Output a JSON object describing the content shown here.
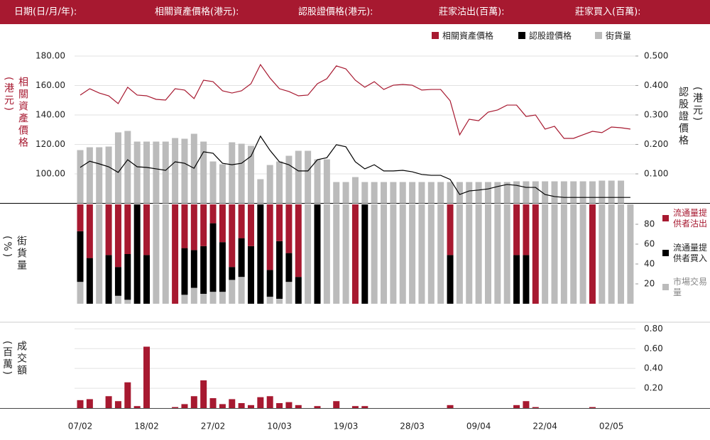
{
  "header": {
    "labels": [
      "日期(日/月/年):",
      "相關資產價格(港元):",
      "認股證價格(港元):",
      "莊家沽出(百萬):",
      "莊家買入(百萬):"
    ]
  },
  "chart_data": [
    {
      "type": "line",
      "ylabel": "相關資產價格(港元)",
      "y2label": "認股證價格(港元)",
      "ylim": [
        80,
        186
      ],
      "yticks": [
        {
          "value": 180,
          "label": "180.00"
        },
        {
          "value": 160,
          "label": "160.00"
        },
        {
          "value": 140,
          "label": "140.00"
        },
        {
          "value": 120,
          "label": "120.00"
        },
        {
          "value": 100,
          "label": "100.00"
        }
      ],
      "y2lim": [
        0,
        0.53
      ],
      "y2ticks": [
        {
          "value": 0.5,
          "label": "0.500"
        },
        {
          "value": 0.4,
          "label": "0.400"
        },
        {
          "value": 0.3,
          "label": "0.300"
        },
        {
          "value": 0.2,
          "label": "0.200"
        },
        {
          "value": 0.1,
          "label": "0.100"
        }
      ],
      "y3lim": [
        0,
        220
      ],
      "grid": true,
      "series": [
        {
          "name": "相關資產價格",
          "color": "#a71930",
          "axis": "y",
          "values": [
            153.5,
            157.8,
            154.9,
            153.0,
            147.7,
            158.8,
            153.5,
            153.0,
            150.6,
            150.1,
            157.8,
            156.9,
            151.1,
            163.6,
            162.6,
            156.4,
            154.9,
            156.4,
            161.2,
            174.2,
            165.1,
            157.8,
            155.9,
            153.0,
            153.5,
            161.2,
            164.6,
            173.3,
            171.3,
            163.6,
            158.8,
            162.6,
            157.3,
            160.2,
            160.7,
            160.2,
            156.9,
            157.3,
            157.3,
            149.6,
            126.5,
            137.1,
            136.1,
            141.9,
            143.4,
            146.7,
            146.7,
            139.0,
            140.0,
            130.4,
            132.3,
            124.1,
            124.1,
            126.5,
            128.9,
            128.0,
            131.8,
            131.3,
            130.4
          ]
        },
        {
          "name": "認股證價格",
          "color": "#000000",
          "axis": "y2",
          "values": [
            0.122,
            0.143,
            0.134,
            0.124,
            0.105,
            0.148,
            0.124,
            0.122,
            0.117,
            0.112,
            0.141,
            0.136,
            0.119,
            0.175,
            0.17,
            0.136,
            0.131,
            0.136,
            0.16,
            0.228,
            0.18,
            0.141,
            0.131,
            0.11,
            0.11,
            0.148,
            0.155,
            0.199,
            0.192,
            0.141,
            0.117,
            0.131,
            0.11,
            0.11,
            0.112,
            0.107,
            0.098,
            0.095,
            0.095,
            0.081,
            0.03,
            0.042,
            0.045,
            0.049,
            0.057,
            0.064,
            0.061,
            0.054,
            0.054,
            0.03,
            0.023,
            0.02,
            0.02,
            0.02,
            0.02,
            0.02,
            0.02,
            0.02,
            0.02
          ]
        },
        {
          "name": "街貨量",
          "color": "#bbbbbb",
          "axis": "y3",
          "values": [
            75,
            79,
            79,
            80,
            100,
            102,
            87,
            87,
            87,
            87,
            92,
            91,
            98,
            87,
            59,
            55,
            86,
            84,
            81,
            34,
            54,
            59,
            67,
            74,
            74,
            62,
            62,
            30,
            30,
            37,
            30,
            30,
            30,
            30,
            30,
            30,
            30,
            30,
            30,
            30,
            30,
            30,
            30,
            30,
            30,
            30,
            31,
            31,
            31,
            31,
            31,
            31,
            31,
            31,
            31,
            32,
            32,
            32,
            null
          ]
        }
      ]
    },
    {
      "type": "stacked_bar",
      "ylabel": "街貨量(%)",
      "ylim": [
        0,
        100
      ],
      "yticks": [
        80,
        60,
        40,
        20
      ],
      "series": [
        {
          "name": "流通量提供者沽出",
          "color": "#a71930",
          "values": [
            27,
            54,
            0,
            51,
            63,
            50,
            0,
            51,
            0,
            0,
            100,
            44,
            46,
            42,
            19,
            38,
            63,
            34,
            42,
            0,
            66,
            37,
            49,
            73,
            0,
            0,
            0,
            0,
            0,
            100,
            0,
            0,
            0,
            0,
            0,
            0,
            0,
            0,
            0,
            51,
            0,
            0,
            0,
            0,
            0,
            0,
            51,
            51,
            100,
            0,
            0,
            0,
            0,
            0,
            100,
            0,
            0,
            0,
            0
          ]
        },
        {
          "name": "流通量提供者買入",
          "color": "#000000",
          "values": [
            51,
            46,
            0,
            49,
            29,
            46,
            100,
            49,
            0,
            0,
            0,
            47,
            38,
            48,
            69,
            50,
            13,
            39,
            58,
            100,
            27,
            58,
            29,
            27,
            0,
            100,
            0,
            0,
            0,
            0,
            100,
            0,
            0,
            0,
            0,
            0,
            0,
            0,
            0,
            49,
            0,
            0,
            0,
            0,
            0,
            0,
            49,
            49,
            0,
            0,
            0,
            0,
            0,
            0,
            0,
            0,
            0,
            0,
            0
          ]
        },
        {
          "name": "市場交易量",
          "color": "#bbbbbb",
          "values": [
            22,
            0,
            100,
            0,
            8,
            4,
            0,
            0,
            100,
            100,
            0,
            9,
            16,
            10,
            12,
            12,
            24,
            27,
            0,
            0,
            7,
            5,
            22,
            0,
            100,
            0,
            100,
            100,
            100,
            0,
            0,
            100,
            100,
            100,
            100,
            100,
            100,
            100,
            100,
            0,
            100,
            100,
            100,
            100,
            100,
            100,
            0,
            0,
            0,
            100,
            100,
            100,
            100,
            100,
            0,
            100,
            100,
            100,
            100
          ]
        }
      ]
    },
    {
      "type": "bar",
      "ylabel": "成交額(百萬)",
      "color": "#a71930",
      "grid": true,
      "ylim": [
        0,
        0.86
      ],
      "yticks": [
        {
          "value": 0.8,
          "label": "0.80"
        },
        {
          "value": 0.6,
          "label": "0.60"
        },
        {
          "value": 0.4,
          "label": "0.40"
        },
        {
          "value": 0.2,
          "label": "0.20"
        }
      ],
      "categories": [
        "07/02",
        null,
        null,
        null,
        null,
        null,
        null,
        "18/02",
        null,
        null,
        null,
        null,
        null,
        null,
        "27/02",
        null,
        null,
        null,
        null,
        null,
        null,
        "10/03",
        null,
        null,
        null,
        null,
        null,
        null,
        "19/03",
        null,
        null,
        null,
        null,
        null,
        null,
        "28/03",
        null,
        null,
        null,
        null,
        null,
        null,
        "09/04",
        null,
        null,
        null,
        null,
        null,
        null,
        "22/04",
        null,
        null,
        null,
        null,
        null,
        null,
        "02/05",
        null,
        null
      ],
      "values": [
        0.08,
        0.09,
        0,
        0.12,
        0.07,
        0.26,
        0.02,
        0.62,
        0,
        0,
        0.01,
        0.04,
        0.12,
        0.28,
        0.1,
        0.04,
        0.09,
        0.05,
        0.03,
        0.11,
        0.12,
        0.05,
        0.06,
        0.03,
        0,
        0.02,
        0,
        0.07,
        0,
        0.02,
        0.02,
        0,
        0,
        0,
        0,
        0,
        0,
        0,
        0,
        0.03,
        0,
        0,
        0,
        0,
        0,
        0,
        0.03,
        0.07,
        0.01,
        0,
        0,
        0,
        0,
        0,
        0.01,
        0,
        0,
        0,
        0
      ]
    }
  ]
}
